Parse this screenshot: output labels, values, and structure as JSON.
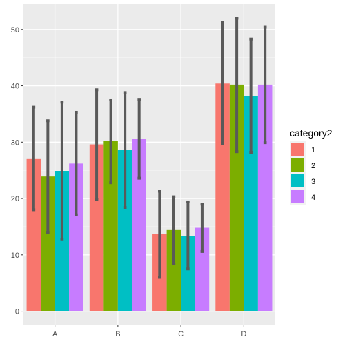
{
  "chart_data": {
    "type": "bar",
    "categories": [
      "A",
      "B",
      "C",
      "D"
    ],
    "y_ticks": [
      0,
      10,
      20,
      30,
      40,
      50
    ],
    "ylim": [
      -2.5,
      54.5
    ],
    "grid": true,
    "legend_position": "right",
    "legend": {
      "title": "category2",
      "entries": [
        "1",
        "2",
        "3",
        "4"
      ]
    },
    "series": [
      {
        "name": "1",
        "color": "#F8766D",
        "values": [
          27.0,
          29.6,
          13.7,
          40.4
        ],
        "error_low": [
          18.0,
          19.8,
          6.0,
          29.7
        ],
        "error_high": [
          36.2,
          39.3,
          21.3,
          51.2
        ]
      },
      {
        "name": "2",
        "color": "#7CAE00",
        "values": [
          23.9,
          30.2,
          14.4,
          40.2
        ],
        "error_low": [
          14.0,
          22.8,
          8.4,
          28.3
        ],
        "error_high": [
          33.8,
          37.5,
          20.3,
          52.0
        ]
      },
      {
        "name": "3",
        "color": "#00BFC4",
        "values": [
          24.9,
          28.6,
          13.4,
          38.2
        ],
        "error_low": [
          12.7,
          18.4,
          7.5,
          28.2
        ],
        "error_high": [
          37.1,
          38.8,
          19.4,
          48.3
        ]
      },
      {
        "name": "4",
        "color": "#C77CFF",
        "values": [
          26.2,
          30.6,
          14.8,
          40.2
        ],
        "error_low": [
          17.1,
          23.6,
          10.6,
          29.9
        ],
        "error_high": [
          35.3,
          37.6,
          19.0,
          50.4
        ]
      }
    ]
  }
}
